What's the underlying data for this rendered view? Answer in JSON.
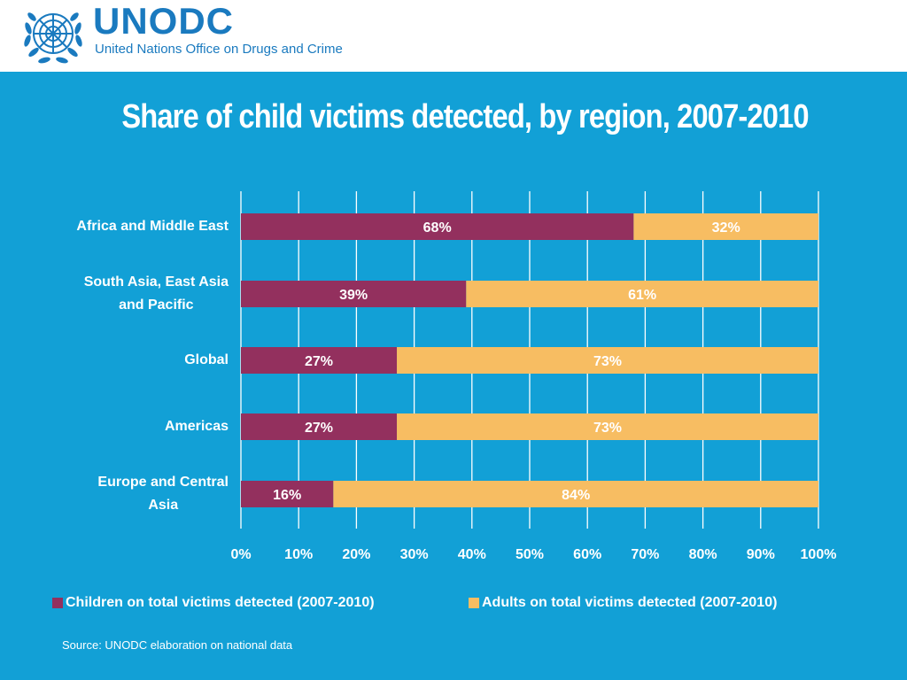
{
  "header": {
    "logo_title": "UNODC",
    "logo_subtitle": "United Nations Office on Drugs and Crime"
  },
  "colors": {
    "panel": "#12a0d6",
    "children": "#93305e",
    "adults": "#f7bd62",
    "logo": "#1a7abf"
  },
  "chart_data": {
    "type": "bar",
    "orientation": "horizontal",
    "stacked": "percent",
    "title": "Share of child victims detected, by region, 2007-2010",
    "categories": [
      [
        "Africa and Middle East"
      ],
      [
        "South Asia, East Asia",
        "and Pacific"
      ],
      [
        "Global"
      ],
      [
        "Americas"
      ],
      [
        "Europe and Central",
        "Asia"
      ]
    ],
    "series": [
      {
        "name": "Children on total victims detected (2007-2010)",
        "values": [
          68,
          39,
          27,
          27,
          16
        ],
        "labels": [
          "68%",
          "39%",
          "27%",
          "27%",
          "16%"
        ],
        "color": "#93305e"
      },
      {
        "name": "Adults on total victims detected (2007-2010)",
        "values": [
          32,
          61,
          73,
          73,
          84
        ],
        "labels": [
          "32%",
          "61%",
          "73%",
          "73%",
          "84%"
        ],
        "color": "#f7bd62"
      }
    ],
    "xlim": [
      0,
      100
    ],
    "xticks": [
      "0%",
      "10%",
      "20%",
      "30%",
      "40%",
      "50%",
      "60%",
      "70%",
      "80%",
      "90%",
      "100%"
    ],
    "grid": true,
    "legend_position": "bottom"
  },
  "source": "Source: UNODC elaboration on national data"
}
